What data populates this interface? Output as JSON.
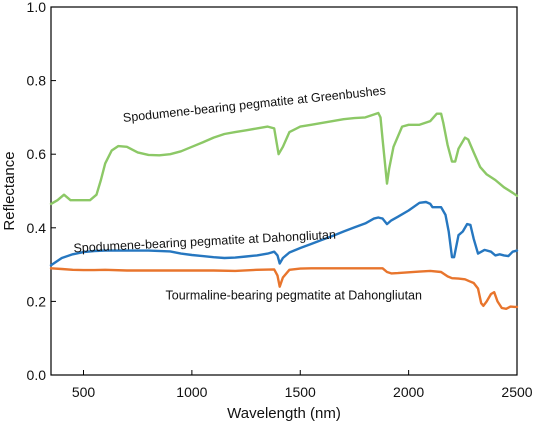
{
  "chart_data": {
    "type": "line",
    "title": "",
    "xlabel": "Wavelength (nm)",
    "ylabel": "Reflectance",
    "xlim": [
      350,
      2500
    ],
    "ylim": [
      0.0,
      1.0
    ],
    "x_ticks": [
      500,
      1000,
      1500,
      2000,
      2500
    ],
    "x_tick_labels": [
      "500",
      "1000",
      "1500",
      "2000",
      "2500"
    ],
    "y_ticks": [
      0.0,
      0.2,
      0.4,
      0.6,
      0.8,
      1.0
    ],
    "y_tick_labels": [
      "0.0",
      "0.2",
      "0.4",
      "0.6",
      "0.8",
      "1.0"
    ],
    "grid": false,
    "series": [
      {
        "name": "Spodumene-bearing pegmatite at Greenbushes",
        "color": "#8cc866",
        "points": [
          [
            350,
            0.465
          ],
          [
            380,
            0.475
          ],
          [
            410,
            0.49
          ],
          [
            440,
            0.475
          ],
          [
            470,
            0.475
          ],
          [
            500,
            0.475
          ],
          [
            530,
            0.475
          ],
          [
            560,
            0.49
          ],
          [
            580,
            0.53
          ],
          [
            600,
            0.575
          ],
          [
            630,
            0.61
          ],
          [
            660,
            0.622
          ],
          [
            700,
            0.62
          ],
          [
            750,
            0.605
          ],
          [
            800,
            0.598
          ],
          [
            850,
            0.597
          ],
          [
            900,
            0.6
          ],
          [
            950,
            0.608
          ],
          [
            1000,
            0.62
          ],
          [
            1050,
            0.632
          ],
          [
            1100,
            0.645
          ],
          [
            1150,
            0.655
          ],
          [
            1200,
            0.66
          ],
          [
            1250,
            0.665
          ],
          [
            1300,
            0.67
          ],
          [
            1350,
            0.675
          ],
          [
            1380,
            0.67
          ],
          [
            1400,
            0.6
          ],
          [
            1420,
            0.62
          ],
          [
            1450,
            0.66
          ],
          [
            1500,
            0.675
          ],
          [
            1550,
            0.68
          ],
          [
            1600,
            0.685
          ],
          [
            1650,
            0.69
          ],
          [
            1700,
            0.695
          ],
          [
            1750,
            0.698
          ],
          [
            1800,
            0.7
          ],
          [
            1840,
            0.708
          ],
          [
            1860,
            0.712
          ],
          [
            1870,
            0.7
          ],
          [
            1880,
            0.64
          ],
          [
            1900,
            0.52
          ],
          [
            1910,
            0.56
          ],
          [
            1930,
            0.62
          ],
          [
            1970,
            0.675
          ],
          [
            2000,
            0.68
          ],
          [
            2050,
            0.68
          ],
          [
            2100,
            0.69
          ],
          [
            2130,
            0.71
          ],
          [
            2150,
            0.71
          ],
          [
            2160,
            0.685
          ],
          [
            2180,
            0.625
          ],
          [
            2200,
            0.58
          ],
          [
            2215,
            0.58
          ],
          [
            2230,
            0.615
          ],
          [
            2260,
            0.645
          ],
          [
            2275,
            0.64
          ],
          [
            2300,
            0.605
          ],
          [
            2330,
            0.565
          ],
          [
            2360,
            0.545
          ],
          [
            2400,
            0.53
          ],
          [
            2440,
            0.51
          ],
          [
            2480,
            0.495
          ],
          [
            2500,
            0.487
          ]
        ]
      },
      {
        "name": "Spodumene-bearing pegmatite at Dahongliutan",
        "color": "#2677c0",
        "points": [
          [
            350,
            0.298
          ],
          [
            400,
            0.318
          ],
          [
            450,
            0.328
          ],
          [
            500,
            0.334
          ],
          [
            550,
            0.337
          ],
          [
            600,
            0.338
          ],
          [
            650,
            0.338
          ],
          [
            700,
            0.338
          ],
          [
            800,
            0.338
          ],
          [
            900,
            0.336
          ],
          [
            950,
            0.33
          ],
          [
            1000,
            0.326
          ],
          [
            1050,
            0.323
          ],
          [
            1100,
            0.32
          ],
          [
            1150,
            0.318
          ],
          [
            1200,
            0.319
          ],
          [
            1250,
            0.322
          ],
          [
            1300,
            0.325
          ],
          [
            1350,
            0.33
          ],
          [
            1380,
            0.335
          ],
          [
            1395,
            0.325
          ],
          [
            1405,
            0.303
          ],
          [
            1420,
            0.318
          ],
          [
            1450,
            0.333
          ],
          [
            1500,
            0.345
          ],
          [
            1550,
            0.356
          ],
          [
            1600,
            0.367
          ],
          [
            1650,
            0.378
          ],
          [
            1700,
            0.39
          ],
          [
            1750,
            0.401
          ],
          [
            1800,
            0.412
          ],
          [
            1840,
            0.425
          ],
          [
            1860,
            0.428
          ],
          [
            1880,
            0.425
          ],
          [
            1900,
            0.41
          ],
          [
            1920,
            0.42
          ],
          [
            1950,
            0.43
          ],
          [
            2000,
            0.447
          ],
          [
            2050,
            0.468
          ],
          [
            2080,
            0.47
          ],
          [
            2100,
            0.465
          ],
          [
            2110,
            0.456
          ],
          [
            2150,
            0.456
          ],
          [
            2170,
            0.435
          ],
          [
            2185,
            0.39
          ],
          [
            2200,
            0.32
          ],
          [
            2210,
            0.32
          ],
          [
            2230,
            0.38
          ],
          [
            2250,
            0.39
          ],
          [
            2270,
            0.41
          ],
          [
            2285,
            0.408
          ],
          [
            2300,
            0.37
          ],
          [
            2320,
            0.33
          ],
          [
            2350,
            0.34
          ],
          [
            2380,
            0.335
          ],
          [
            2400,
            0.325
          ],
          [
            2420,
            0.328
          ],
          [
            2440,
            0.325
          ],
          [
            2460,
            0.323
          ],
          [
            2480,
            0.335
          ],
          [
            2500,
            0.338
          ]
        ]
      },
      {
        "name": "Tourmaline-bearing pegmatite at Dahongliutan",
        "color": "#e8752d",
        "points": [
          [
            350,
            0.29
          ],
          [
            400,
            0.288
          ],
          [
            450,
            0.286
          ],
          [
            500,
            0.285
          ],
          [
            550,
            0.285
          ],
          [
            600,
            0.286
          ],
          [
            700,
            0.284
          ],
          [
            800,
            0.284
          ],
          [
            900,
            0.284
          ],
          [
            1000,
            0.284
          ],
          [
            1100,
            0.284
          ],
          [
            1200,
            0.283
          ],
          [
            1300,
            0.286
          ],
          [
            1380,
            0.287
          ],
          [
            1395,
            0.27
          ],
          [
            1405,
            0.24
          ],
          [
            1420,
            0.265
          ],
          [
            1450,
            0.286
          ],
          [
            1500,
            0.289
          ],
          [
            1550,
            0.29
          ],
          [
            1600,
            0.29
          ],
          [
            1700,
            0.29
          ],
          [
            1800,
            0.29
          ],
          [
            1850,
            0.29
          ],
          [
            1880,
            0.29
          ],
          [
            1900,
            0.28
          ],
          [
            1920,
            0.276
          ],
          [
            1950,
            0.277
          ],
          [
            2000,
            0.279
          ],
          [
            2050,
            0.281
          ],
          [
            2100,
            0.283
          ],
          [
            2150,
            0.28
          ],
          [
            2180,
            0.268
          ],
          [
            2200,
            0.263
          ],
          [
            2230,
            0.262
          ],
          [
            2260,
            0.26
          ],
          [
            2280,
            0.255
          ],
          [
            2300,
            0.25
          ],
          [
            2320,
            0.235
          ],
          [
            2335,
            0.195
          ],
          [
            2345,
            0.188
          ],
          [
            2360,
            0.2
          ],
          [
            2380,
            0.22
          ],
          [
            2395,
            0.225
          ],
          [
            2410,
            0.2
          ],
          [
            2430,
            0.182
          ],
          [
            2450,
            0.18
          ],
          [
            2470,
            0.186
          ],
          [
            2490,
            0.185
          ],
          [
            2500,
            0.185
          ]
        ]
      }
    ],
    "annotations": [
      {
        "text": "Spodumene-bearing pegmatite at Greenbushes",
        "x": 1290,
        "y": 0.725,
        "rotate": -6,
        "anchor": "middle"
      },
      {
        "text": "Spodumene-bearing pegmatite at Dahongliutan",
        "x": 1060,
        "y": 0.352,
        "rotate": -3,
        "anchor": "middle"
      },
      {
        "text": "Tourmaline-bearing pegmatite at Dahongliutan",
        "x": 1470,
        "y": 0.205,
        "rotate": 0,
        "anchor": "middle"
      }
    ]
  }
}
